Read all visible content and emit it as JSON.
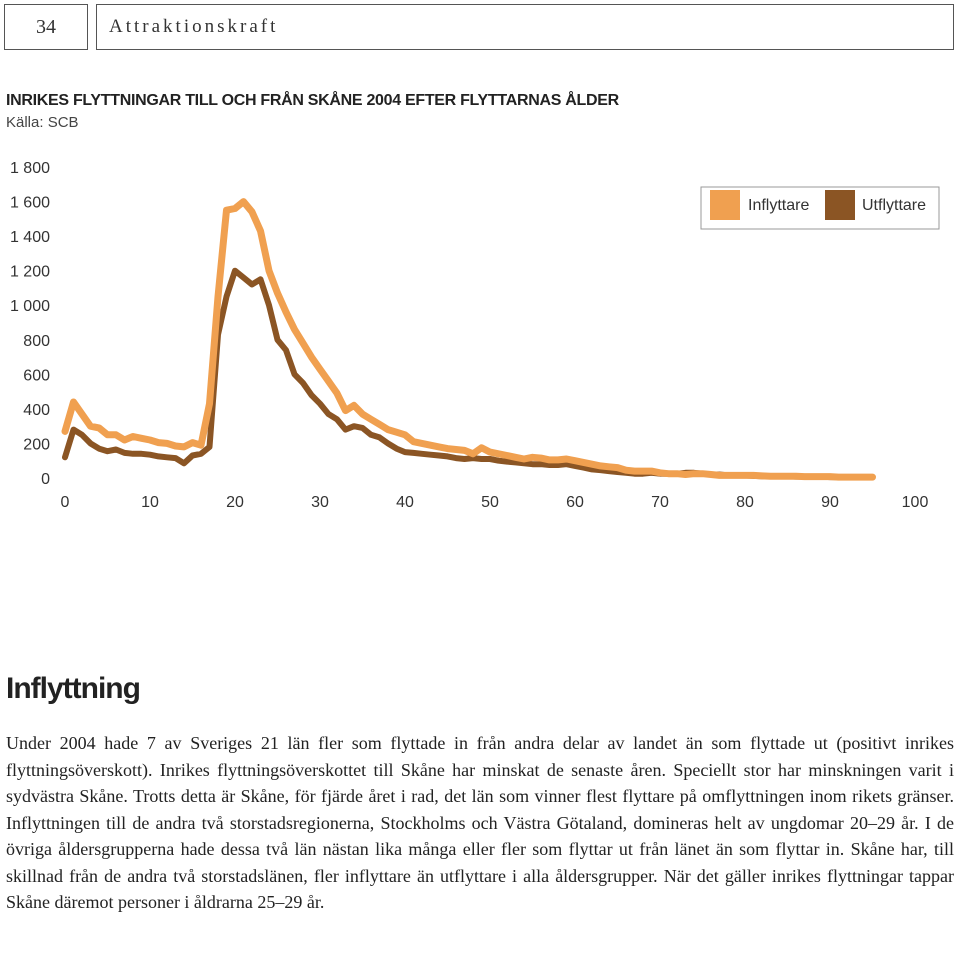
{
  "header": {
    "page_number": "34",
    "running_title": "Attraktionskraft"
  },
  "chart_data": {
    "type": "line",
    "title": "INRIKES FLYTTNINGAR TILL OCH FRÅN SKÅNE 2004 EFTER FLYTTARNAS ÅLDER",
    "subtitle": "Källa: SCB",
    "xlabel": "",
    "ylabel": "",
    "xlim": [
      0,
      100
    ],
    "ylim": [
      0,
      1800
    ],
    "x_ticks": [
      0,
      10,
      20,
      30,
      40,
      50,
      60,
      70,
      80,
      90,
      100
    ],
    "y_ticks": [
      0,
      200,
      400,
      600,
      800,
      1000,
      1200,
      1400,
      1600,
      1800
    ],
    "y_tick_labels": [
      "0",
      "200",
      "400",
      "600",
      "800",
      "1 000",
      "1 200",
      "1 400",
      "1 600",
      "1 800"
    ],
    "grid": false,
    "legend_position": "top-right",
    "x": [
      0,
      1,
      2,
      3,
      4,
      5,
      6,
      7,
      8,
      9,
      10,
      11,
      12,
      13,
      14,
      15,
      16,
      17,
      18,
      19,
      20,
      21,
      22,
      23,
      24,
      25,
      26,
      27,
      28,
      29,
      30,
      31,
      32,
      33,
      34,
      35,
      36,
      37,
      38,
      39,
      40,
      41,
      42,
      43,
      44,
      45,
      46,
      47,
      48,
      49,
      50,
      51,
      52,
      53,
      54,
      55,
      56,
      57,
      58,
      59,
      60,
      61,
      62,
      63,
      64,
      65,
      66,
      67,
      68,
      69,
      70,
      71,
      72,
      73,
      74,
      75,
      76,
      77,
      78,
      79,
      80,
      81,
      82,
      83,
      84,
      85,
      86,
      87,
      88,
      89,
      90,
      91,
      92,
      93,
      94,
      95
    ],
    "series": [
      {
        "name": "Inflyttare",
        "color": "#F0A050",
        "values": [
          270,
          440,
          370,
          300,
          290,
          250,
          250,
          220,
          240,
          230,
          220,
          205,
          200,
          185,
          180,
          205,
          190,
          430,
          1050,
          1550,
          1560,
          1600,
          1540,
          1430,
          1200,
          1070,
          960,
          860,
          780,
          700,
          630,
          560,
          490,
          390,
          420,
          370,
          340,
          310,
          280,
          265,
          250,
          210,
          200,
          190,
          180,
          170,
          165,
          160,
          140,
          175,
          150,
          140,
          130,
          120,
          110,
          120,
          115,
          105,
          105,
          110,
          100,
          90,
          80,
          70,
          65,
          60,
          45,
          40,
          40,
          40,
          30,
          25,
          25,
          20,
          25,
          25,
          20,
          15,
          15,
          15,
          15,
          15,
          12,
          10,
          10,
          10,
          10,
          8,
          8,
          8,
          8,
          5,
          5,
          5,
          5,
          5
        ]
      },
      {
        "name": "Utflyttare",
        "color": "#8B5524",
        "values": [
          120,
          280,
          250,
          200,
          170,
          155,
          165,
          145,
          140,
          140,
          135,
          125,
          120,
          115,
          85,
          130,
          140,
          180,
          830,
          1050,
          1200,
          1160,
          1120,
          1150,
          1000,
          800,
          740,
          600,
          550,
          480,
          430,
          370,
          340,
          280,
          300,
          290,
          250,
          235,
          200,
          170,
          150,
          145,
          140,
          135,
          130,
          125,
          115,
          110,
          115,
          110,
          110,
          100,
          95,
          90,
          85,
          80,
          80,
          75,
          75,
          80,
          70,
          60,
          50,
          45,
          40,
          35,
          30,
          25,
          25,
          30,
          25,
          25,
          25,
          30,
          30,
          25,
          20,
          20,
          15,
          15,
          15,
          12,
          10,
          10,
          10,
          10,
          8,
          8,
          8,
          8,
          5,
          5,
          5,
          5,
          5,
          5
        ]
      }
    ]
  },
  "legend": {
    "inflyttare_label": "Inflyttare",
    "utflyttare_label": "Utflyttare"
  },
  "article": {
    "heading": "Inflyttning",
    "paragraph": "Under 2004 hade 7 av Sveriges 21 län fler som flyttade in från andra delar av landet än som flyttade ut (positivt inrikes flyttningsöverskott). Inrikes flyttningsöverskottet till Skåne har minskat de senaste åren. Speciellt stor har minskningen varit i sydvästra Skåne. Trotts detta är Skåne, för fjärde året i rad, det län som vinner flest flyttare på omflyttningen inom rikets gränser. Inflyttningen till de andra två storstadsregionerna, Stockholms och Västra Götaland, domineras helt av ungdomar 20–29 år. I de övriga åldersgrupperna hade dessa två län nästan lika många eller fler som flyttar ut från länet än som flyttar in. Skåne har, till skillnad från de andra två storstadslänen, fler inflyttare än utflyttare i alla åldersgrupper. När det gäller inrikes flyttningar tappar Skåne däremot personer i åldrarna 25–29 år."
  }
}
